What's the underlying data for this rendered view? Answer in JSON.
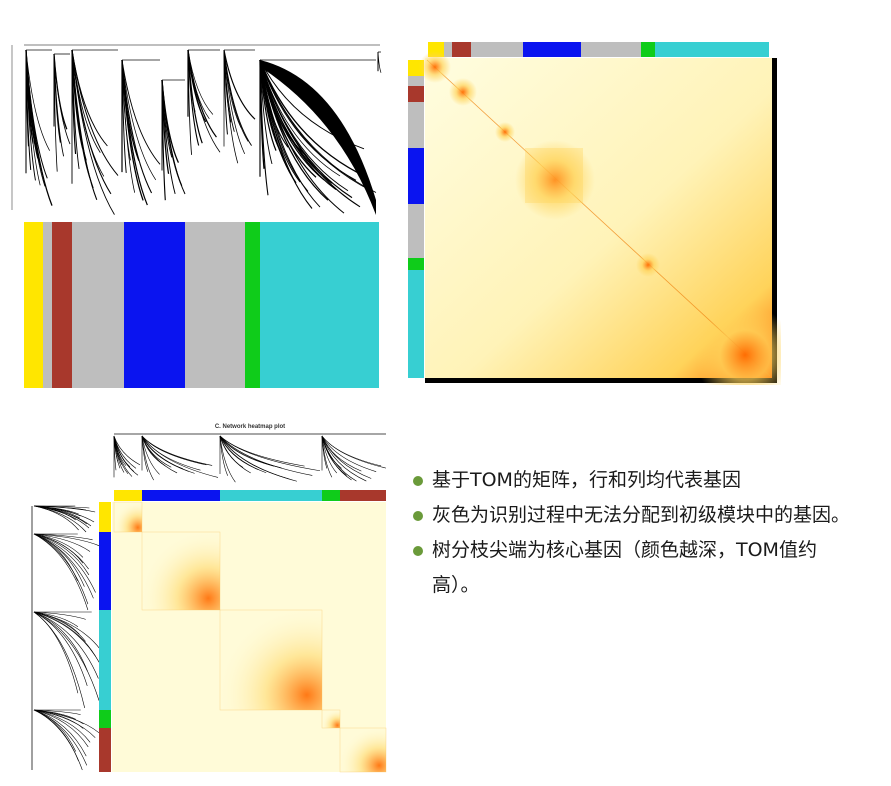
{
  "figure": {
    "panel_c_title": "C. Network heatmap plot",
    "module_colors": {
      "yellow": "#ffe600",
      "grey": "#bebebe",
      "brown": "#a8382c",
      "blue": "#0a14f0",
      "green": "#0fcc1a",
      "turquoise": "#37cfd2"
    },
    "heat_colors": {
      "low": "#fffde0",
      "mid": "#ffd35a",
      "high": "#ff6a00"
    },
    "dendrogram_modules": [
      "yellow",
      "grey",
      "brown",
      "grey",
      "blue",
      "grey",
      "green",
      "turquoise"
    ],
    "tom_modules": [
      "yellow",
      "grey",
      "brown",
      "grey",
      "blue",
      "grey",
      "green",
      "turquoise"
    ],
    "network_modules": [
      "yellow",
      "blue",
      "turquoise",
      "green",
      "brown"
    ]
  },
  "bullets": [
    {
      "text": "基于TOM的矩阵，行和列均代表基因"
    },
    {
      "text": "灰色为识别过程中无法分配到初级模块中的基因。"
    },
    {
      "text": "树分枝尖端为核心基因（颜色越深，TOM值约高）。"
    }
  ]
}
